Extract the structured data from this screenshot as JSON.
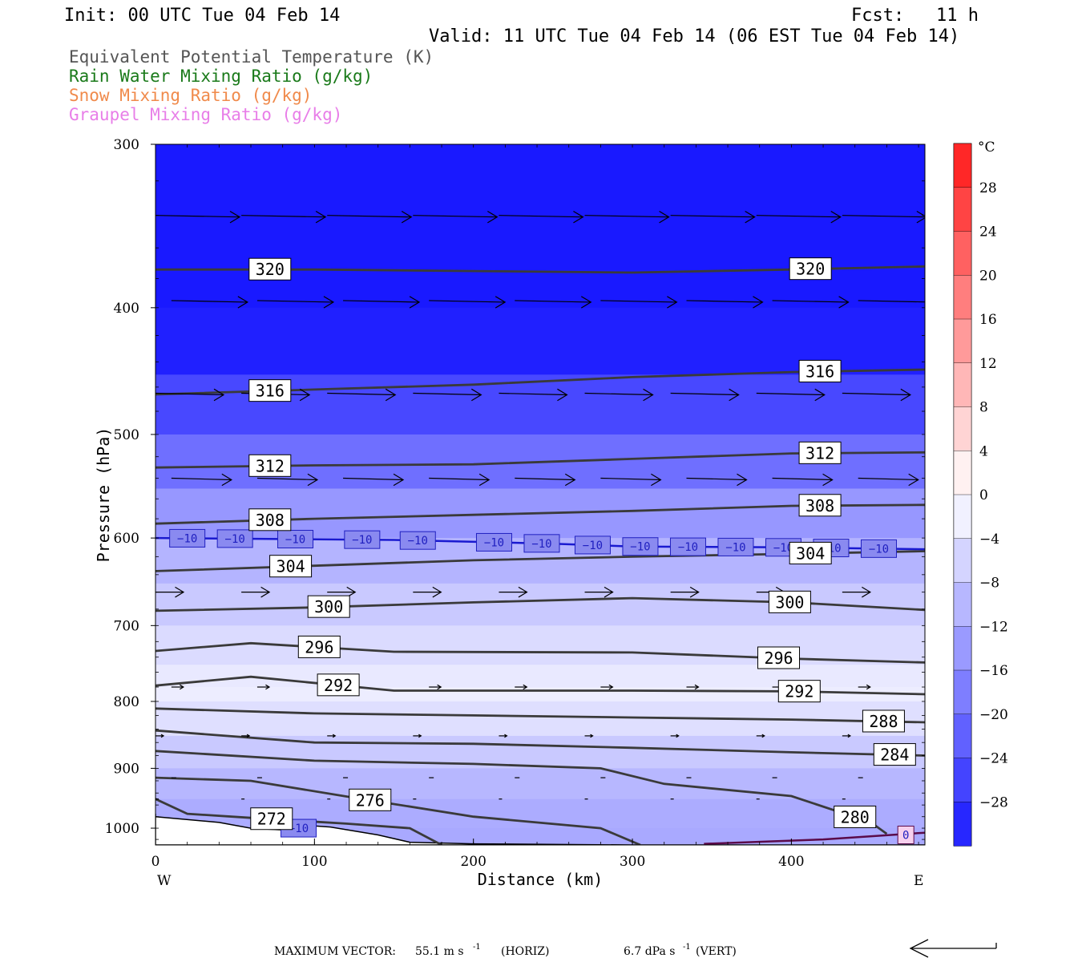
{
  "header": {
    "init": "Init: 00 UTC Tue 04 Feb 14",
    "fcst_label": "Fcst:",
    "fcst_value": "11 h",
    "valid": "Valid: 11 UTC Tue 04 Feb 14 (06 EST Tue 04 Feb 14)"
  },
  "fields": [
    {
      "text": "Equivalent Potential Temperature (K)",
      "color": "#555555"
    },
    {
      "text": "Rain Water Mixing Ratio (g/kg)",
      "color": "#1a7a1a"
    },
    {
      "text": "Snow Mixing Ratio (g/kg)",
      "color": "#f08a4b"
    },
    {
      "text": "Graupel Mixing Ratio (g/kg)",
      "color": "#e87ee8"
    }
  ],
  "axes": {
    "x_label": "Distance (km)",
    "y_label": "Pressure (hPa)",
    "west": "W",
    "east": "E"
  },
  "colorbar": {
    "unit": "°C",
    "labels": [
      "28",
      "24",
      "20",
      "16",
      "12",
      "8",
      "4",
      "0",
      "−4",
      "−8",
      "−12",
      "−16",
      "−20",
      "−24",
      "−28"
    ]
  },
  "footer": {
    "max_vector_label": "MAXIMUM VECTOR:",
    "horiz_value": "55.1 m s",
    "horiz_exp": "-1",
    "horiz_unit": "(HORIZ)",
    "vert_value": "6.7 dPa s",
    "vert_exp": "-1",
    "vert_unit": "(VERT)"
  },
  "chart_data": {
    "type": "heatmap",
    "description_fields": "cross-section of temperature (shaded), equivalent potential temperature (contours) and wind vectors",
    "x_range": [
      0,
      484
    ],
    "x_ticks": [
      "0",
      "100",
      "200",
      "300",
      "400"
    ],
    "y_range": [
      300,
      1030
    ],
    "y_scale": "log",
    "y_ticks": [
      "300",
      "400",
      "500",
      "600",
      "700",
      "800",
      "900",
      "1000"
    ],
    "temperature_scale_C": [
      -32,
      32
    ],
    "temperature_levels": [
      {
        "p": 300,
        "t": -45
      },
      {
        "p": 350,
        "t": -40
      },
      {
        "p": 400,
        "t": -34
      },
      {
        "p": 450,
        "t": -28
      },
      {
        "p": 500,
        "t": -23
      },
      {
        "p": 550,
        "t": -17
      },
      {
        "p": 600,
        "t": -12
      },
      {
        "p": 650,
        "t": -9
      },
      {
        "p": 700,
        "t": -6
      },
      {
        "p": 750,
        "t": -4
      },
      {
        "p": 780,
        "t": -2
      },
      {
        "p": 800,
        "t": -3
      },
      {
        "p": 850,
        "t": -6
      },
      {
        "p": 900,
        "t": -9
      },
      {
        "p": 950,
        "t": -11
      },
      {
        "p": 1000,
        "t": -12
      },
      {
        "p": 1030,
        "t": -12
      }
    ],
    "theta_e_contours": [
      {
        "value": 320,
        "label": "320",
        "points": [
          [
            0,
            374
          ],
          [
            100,
            374
          ],
          [
            200,
            375
          ],
          [
            300,
            376
          ],
          [
            400,
            374
          ],
          [
            484,
            372
          ]
        ],
        "label_x": 72,
        "label2_x": 412
      },
      {
        "value": 316,
        "label": "316",
        "points": [
          [
            0,
            466
          ],
          [
            100,
            462
          ],
          [
            200,
            458
          ],
          [
            300,
            452
          ],
          [
            400,
            448
          ],
          [
            484,
            446
          ]
        ],
        "label_x": 72,
        "label2_x": 418
      },
      {
        "value": 312,
        "label": "312",
        "points": [
          [
            0,
            530
          ],
          [
            100,
            528
          ],
          [
            200,
            527
          ],
          [
            300,
            522
          ],
          [
            400,
            517
          ],
          [
            484,
            516
          ]
        ],
        "label_x": 72,
        "label2_x": 418
      },
      {
        "value": 308,
        "label": "308",
        "points": [
          [
            0,
            585
          ],
          [
            100,
            580
          ],
          [
            200,
            576
          ],
          [
            300,
            572
          ],
          [
            400,
            567
          ],
          [
            484,
            566
          ]
        ],
        "label_x": 72,
        "label2_x": 418
      },
      {
        "value": 304,
        "label": "304",
        "points": [
          [
            0,
            636
          ],
          [
            100,
            630
          ],
          [
            200,
            624
          ],
          [
            300,
            620
          ],
          [
            400,
            617
          ],
          [
            484,
            614
          ]
        ],
        "label_x": 85,
        "label2_x": 412
      },
      {
        "value": 300,
        "label": "300",
        "points": [
          [
            0,
            682
          ],
          [
            100,
            678
          ],
          [
            200,
            672
          ],
          [
            300,
            667
          ],
          [
            400,
            672
          ],
          [
            484,
            681
          ]
        ],
        "label_x": 109,
        "label2_x": 399
      },
      {
        "value": 296,
        "label": "296",
        "points": [
          [
            0,
            732
          ],
          [
            60,
            722
          ],
          [
            150,
            733
          ],
          [
            300,
            734
          ],
          [
            400,
            742
          ],
          [
            484,
            747
          ]
        ],
        "label_x": 103,
        "label2_x": 392
      },
      {
        "value": 292,
        "label": "292",
        "points": [
          [
            0,
            778
          ],
          [
            60,
            766
          ],
          [
            150,
            785
          ],
          [
            300,
            785
          ],
          [
            400,
            786
          ],
          [
            484,
            790
          ]
        ],
        "label_x": 115,
        "label2_x": 405
      },
      {
        "value": 288,
        "label": "288",
        "points": [
          [
            0,
            810
          ],
          [
            100,
            817
          ],
          [
            200,
            820
          ],
          [
            300,
            823
          ],
          [
            400,
            826
          ],
          [
            484,
            830
          ]
        ],
        "label_x": null,
        "label2_x": 458
      },
      {
        "value": 284,
        "label": "284",
        "points": [
          [
            0,
            842
          ],
          [
            100,
            860
          ],
          [
            200,
            862
          ],
          [
            300,
            868
          ],
          [
            400,
            875
          ],
          [
            484,
            880
          ]
        ],
        "label_x": null,
        "label2_x": 465
      },
      {
        "value": 280,
        "label": "280",
        "points": [
          [
            0,
            873
          ],
          [
            100,
            888
          ],
          [
            200,
            893
          ],
          [
            280,
            900
          ],
          [
            320,
            925
          ],
          [
            400,
            945
          ],
          [
            450,
            990
          ],
          [
            460,
            1010
          ]
        ],
        "label_x": null,
        "label2_x": 440
      },
      {
        "value": 276,
        "label": "276",
        "points": [
          [
            0,
            915
          ],
          [
            60,
            920
          ],
          [
            130,
            950
          ],
          [
            200,
            980
          ],
          [
            280,
            1000
          ],
          [
            305,
            1030
          ]
        ],
        "label_x": 135,
        "label2_x": null
      },
      {
        "value": 272,
        "label": "272",
        "points": [
          [
            0,
            950
          ],
          [
            20,
            975
          ],
          [
            60,
            982
          ],
          [
            120,
            992
          ],
          [
            160,
            1000
          ],
          [
            180,
            1030
          ]
        ],
        "label_x": 73,
        "label2_x": null
      }
    ],
    "minus10_isotherm": {
      "label": "−10",
      "points": [
        [
          0,
          600
        ],
        [
          150,
          602
        ],
        [
          250,
          606
        ],
        [
          300,
          609
        ],
        [
          400,
          610
        ],
        [
          484,
          612
        ]
      ]
    },
    "zero_isotherm": {
      "label": "0",
      "points": [
        [
          345,
          1028
        ],
        [
          420,
          1020
        ],
        [
          484,
          1008
        ]
      ]
    },
    "wind_vector_rows_hPa": [
      340,
      395,
      465,
      540,
      660,
      780,
      850,
      915,
      950
    ]
  }
}
